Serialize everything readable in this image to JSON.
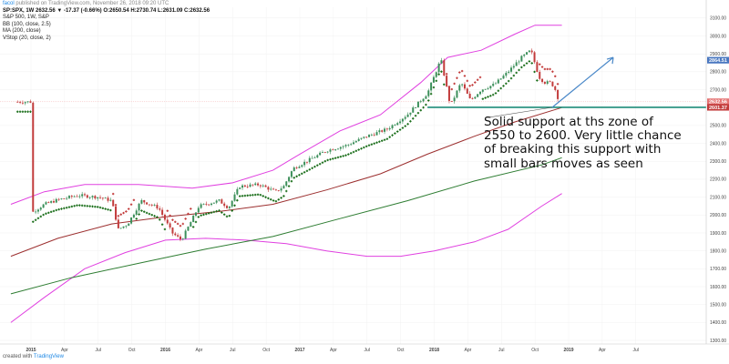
{
  "header": {
    "line1_author": "facol",
    "line1_text": "published on TradingView.com, November 26, 2018 09:20 UTC",
    "symbol_line": "SP:SPX, 1W  2632.56 ▼ -17.37 (-0.66%) O:2650.54 H:2730.74 L:2631.09 C:2632.56",
    "indicators": [
      "S&P 500, 1W, S&P",
      "BB (100, close, 2.5)",
      "MA (200, close)",
      "VStop (20, close, 2)"
    ]
  },
  "footer": {
    "text": "created with",
    "brand": "TradingView"
  },
  "annotation": {
    "text": "Solid support at ths zone of 2550 to 2600. Very little chance of breaking this support with small bars moves as seen"
  },
  "colors": {
    "bull_candle": "#3b8f5a",
    "bear_candle": "#c23b3b",
    "bb_band": "#e040e0",
    "ma200": "#2e7d32",
    "bb_middle": "#9c2f2f",
    "vstop": "#1a6e1a",
    "support_line": "#1e8c78",
    "arrow": "#4a88c8",
    "current_price_tag": "#e57373",
    "top_price_tag": "#4a78c0"
  },
  "chart_data": {
    "type": "candlestick",
    "title": "S&P 500, 1W, S&P",
    "x_tick_labels": [
      "2015",
      "Apr",
      "Jul",
      "Oct",
      "2016",
      "Apr",
      "Jul",
      "Oct",
      "2017",
      "Apr",
      "Jul",
      "Oct",
      "2018",
      "Apr",
      "Jul",
      "Oct",
      "2019",
      "Apr",
      "Jul"
    ],
    "y_tick_labels": [
      "3100.00",
      "3000.00",
      "2900.00",
      "2800.00",
      "2700.00",
      "2600.00",
      "2500.00",
      "2400.00",
      "2300.00",
      "2200.00",
      "2100.00",
      "2000.00",
      "1900.00",
      "1800.00",
      "1700.00",
      "1600.00",
      "1500.00",
      "1400.00",
      "1300.00"
    ],
    "ylim": [
      1280,
      3160
    ],
    "price_tags": [
      {
        "label": "2864.51",
        "value": 2864.51
      },
      {
        "label": "2632.56",
        "value": 2632.56
      },
      {
        "label": "2601.37",
        "value": 2601.37
      }
    ],
    "support_level": 2601.37,
    "weekly_close_approx": [
      {
        "date": "2015-01",
        "close": 2010
      },
      {
        "date": "2015-03",
        "close": 2070
      },
      {
        "date": "2015-05",
        "close": 2110
      },
      {
        "date": "2015-07",
        "close": 2100
      },
      {
        "date": "2015-08",
        "close": 1920
      },
      {
        "date": "2015-10",
        "close": 2060
      },
      {
        "date": "2015-12",
        "close": 2040
      },
      {
        "date": "2016-02",
        "close": 1870
      },
      {
        "date": "2016-04",
        "close": 2080
      },
      {
        "date": "2016-06",
        "close": 2060
      },
      {
        "date": "2016-08",
        "close": 2180
      },
      {
        "date": "2016-10",
        "close": 2120
      },
      {
        "date": "2016-12",
        "close": 2260
      },
      {
        "date": "2017-03",
        "close": 2370
      },
      {
        "date": "2017-06",
        "close": 2430
      },
      {
        "date": "2017-09",
        "close": 2500
      },
      {
        "date": "2017-12",
        "close": 2670
      },
      {
        "date": "2018-01",
        "close": 2860
      },
      {
        "date": "2018-02",
        "close": 2600
      },
      {
        "date": "2018-05",
        "close": 2720
      },
      {
        "date": "2018-08",
        "close": 2880
      },
      {
        "date": "2018-09",
        "close": 2920
      },
      {
        "date": "2018-10",
        "close": 2700
      },
      {
        "date": "2018-11",
        "close": 2632.56
      }
    ]
  }
}
